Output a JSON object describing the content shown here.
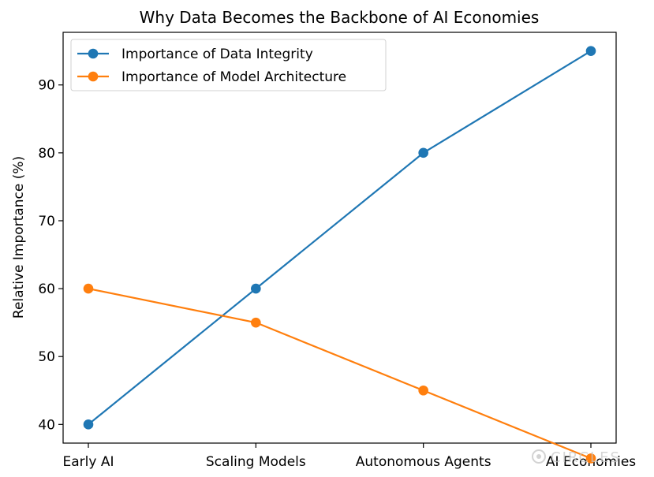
{
  "chart_data": {
    "type": "line",
    "title": "Why Data Becomes the Backbone of AI Economies",
    "xlabel": "",
    "ylabel": "Relative Importance (%)",
    "categories": [
      "Early AI",
      "Scaling Models",
      "Autonomous Agents",
      "AI Economies"
    ],
    "ylim": [
      37.25,
      97.75
    ],
    "yticks": [
      40,
      50,
      60,
      70,
      80,
      90
    ],
    "grid": false,
    "legend_position": "upper-left",
    "series": [
      {
        "name": "Importance of Data Integrity",
        "values": [
          40,
          60,
          80,
          95
        ],
        "color": "#1f77b4",
        "marker": "circle"
      },
      {
        "name": "Importance of Model Architecture",
        "values": [
          60,
          55,
          45,
          35
        ],
        "color": "#ff7f0e",
        "marker": "circle"
      }
    ]
  },
  "watermark": {
    "text": "CIRCLES",
    "icon": "circles-logo-icon"
  }
}
